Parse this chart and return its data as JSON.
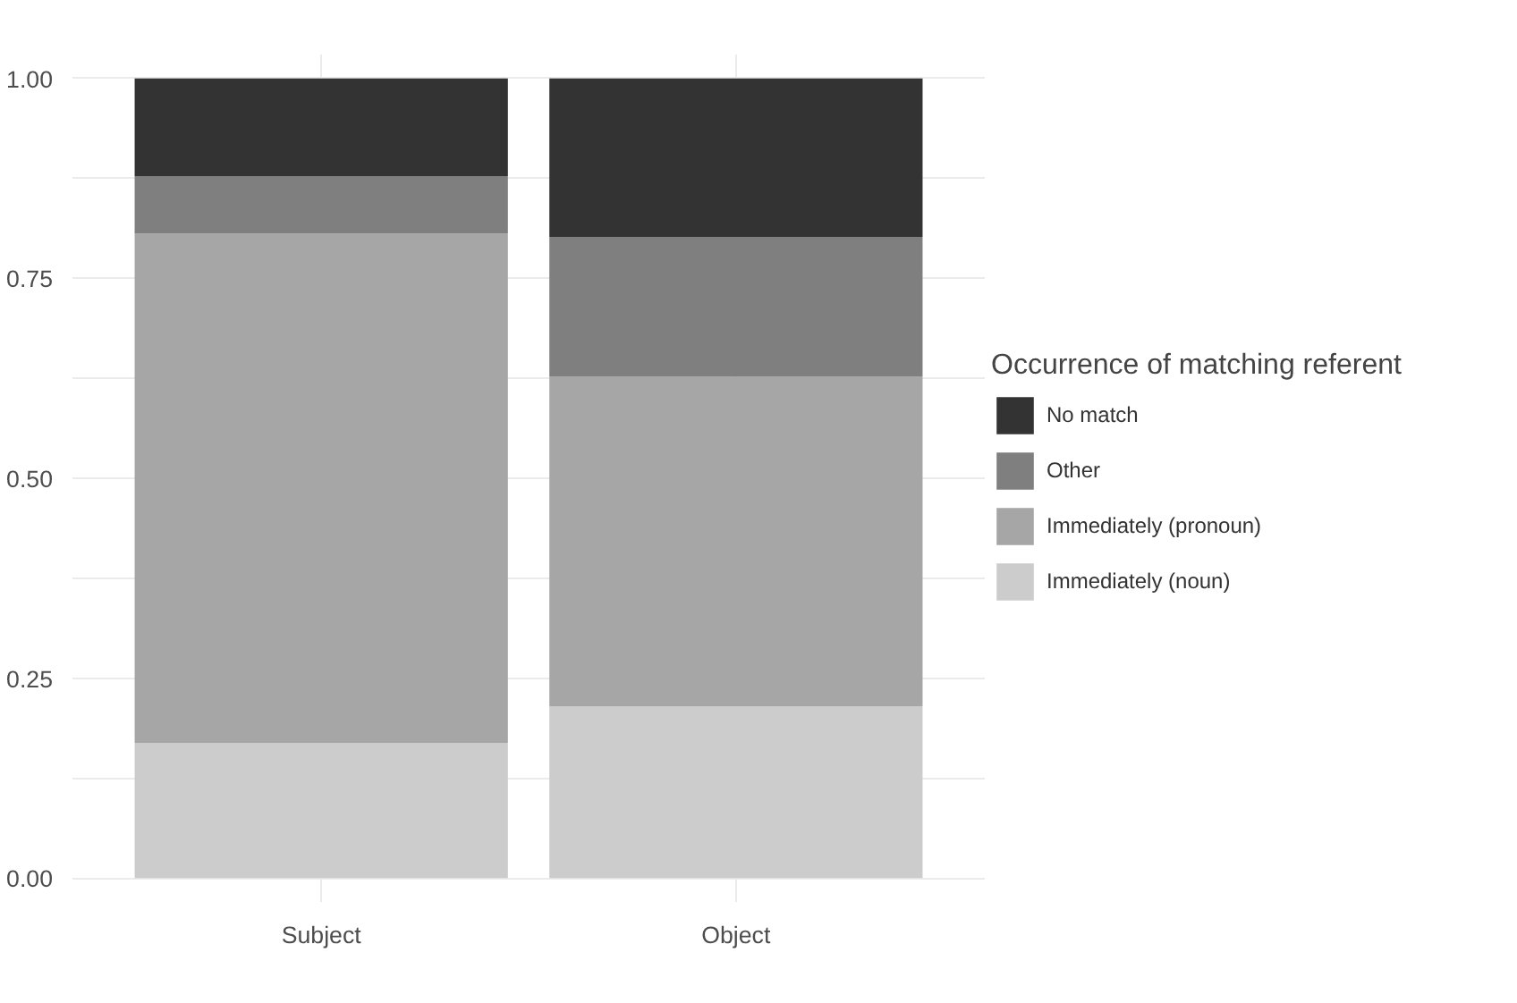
{
  "chart_data": {
    "type": "bar",
    "stacked": true,
    "categories": [
      "Subject",
      "Object"
    ],
    "legend_title": "Occurrence of matching referent",
    "legend": "right",
    "grid": true,
    "ylim": [
      -0.03,
      1.03
    ],
    "yticks": [
      {
        "value": 0,
        "label": "0.00"
      },
      {
        "value": 0.125,
        "label": null
      },
      {
        "value": 0.25,
        "label": "0.25"
      },
      {
        "value": 0.375,
        "label": null
      },
      {
        "value": 0.5,
        "label": "0.50"
      },
      {
        "value": 0.625,
        "label": null
      },
      {
        "value": 0.75,
        "label": "0.75"
      },
      {
        "value": 0.875,
        "label": null
      },
      {
        "value": 1,
        "label": "1.00"
      }
    ],
    "series": [
      {
        "name": "Immediately (noun)",
        "color": "#cccccc",
        "values": [
          0.169,
          0.215
        ]
      },
      {
        "name": "Immediately (pronoun)",
        "color": "#a6a6a6",
        "values": [
          0.637,
          0.412
        ]
      },
      {
        "name": "Other",
        "color": "#7f7f7f",
        "values": [
          0.072,
          0.175
        ]
      },
      {
        "name": "No match",
        "color": "#333333",
        "values": [
          0.122,
          0.198
        ]
      }
    ]
  }
}
